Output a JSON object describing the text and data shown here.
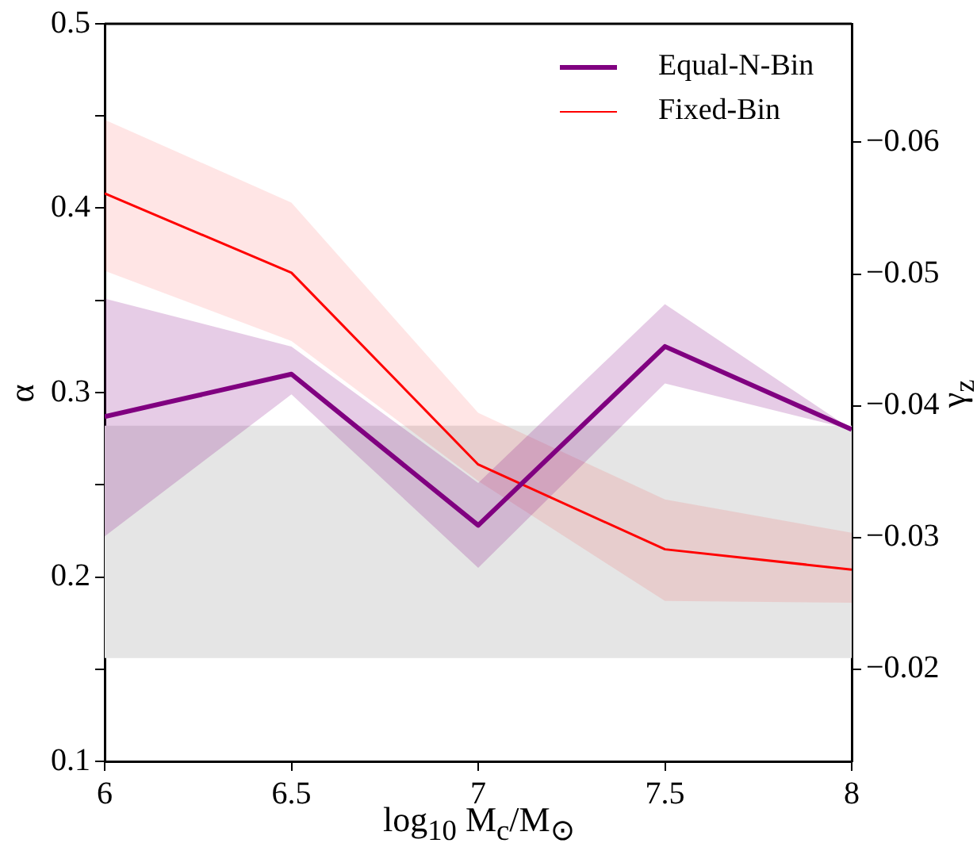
{
  "chart_data": {
    "type": "line",
    "xlabel": "log$_{10}$ M$_{c}$/M$_{⊙}$",
    "ylabel": "α",
    "y2label": "γ$_{z}$",
    "x": [
      6,
      6.5,
      7,
      7.5,
      8
    ],
    "series": [
      {
        "name": "Equal-N-Bin",
        "color": "#800080",
        "values": [
          0.287,
          0.31,
          0.228,
          0.325,
          0.28
        ],
        "lower": [
          0.222,
          0.299,
          0.205,
          0.305,
          0.28
        ],
        "upper": [
          0.351,
          0.325,
          0.251,
          0.348,
          0.28
        ]
      },
      {
        "name": "Fixed-Bin",
        "color": "#ff0000",
        "values": [
          0.408,
          0.365,
          0.261,
          0.215,
          0.204
        ],
        "lower": [
          0.366,
          0.328,
          0.252,
          0.187,
          0.186
        ],
        "upper": [
          0.448,
          0.403,
          0.289,
          0.242,
          0.224
        ]
      }
    ],
    "bands": [
      {
        "axis": "y",
        "from": 0.156,
        "to": 0.282,
        "color": "#e5e5e5"
      }
    ],
    "xlim": [
      6,
      8
    ],
    "xticks": [
      6,
      6.5,
      7,
      7.5,
      8
    ],
    "ylim": [
      0.1,
      0.5
    ],
    "yticks": [
      0.1,
      {
        "value": 0.15,
        "label": null
      },
      0.2,
      {
        "value": 0.25,
        "label": null
      },
      0.3,
      {
        "value": 0.35,
        "label": null
      },
      0.4,
      {
        "value": 0.45,
        "label": null
      },
      0.5
    ],
    "y2lim": [
      -0.013,
      -0.069
    ],
    "y2ticks": [
      {
        "value": -0.02,
        "label": "−0.02"
      },
      {
        "value": -0.03,
        "label": "−0.03"
      },
      {
        "value": -0.04,
        "label": "−0.04"
      },
      {
        "value": -0.05,
        "label": "−0.05"
      },
      {
        "value": -0.06,
        "label": "−0.06"
      }
    ],
    "grid": false,
    "legend": "top right",
    "marker": "none",
    "line_style": "solid"
  }
}
